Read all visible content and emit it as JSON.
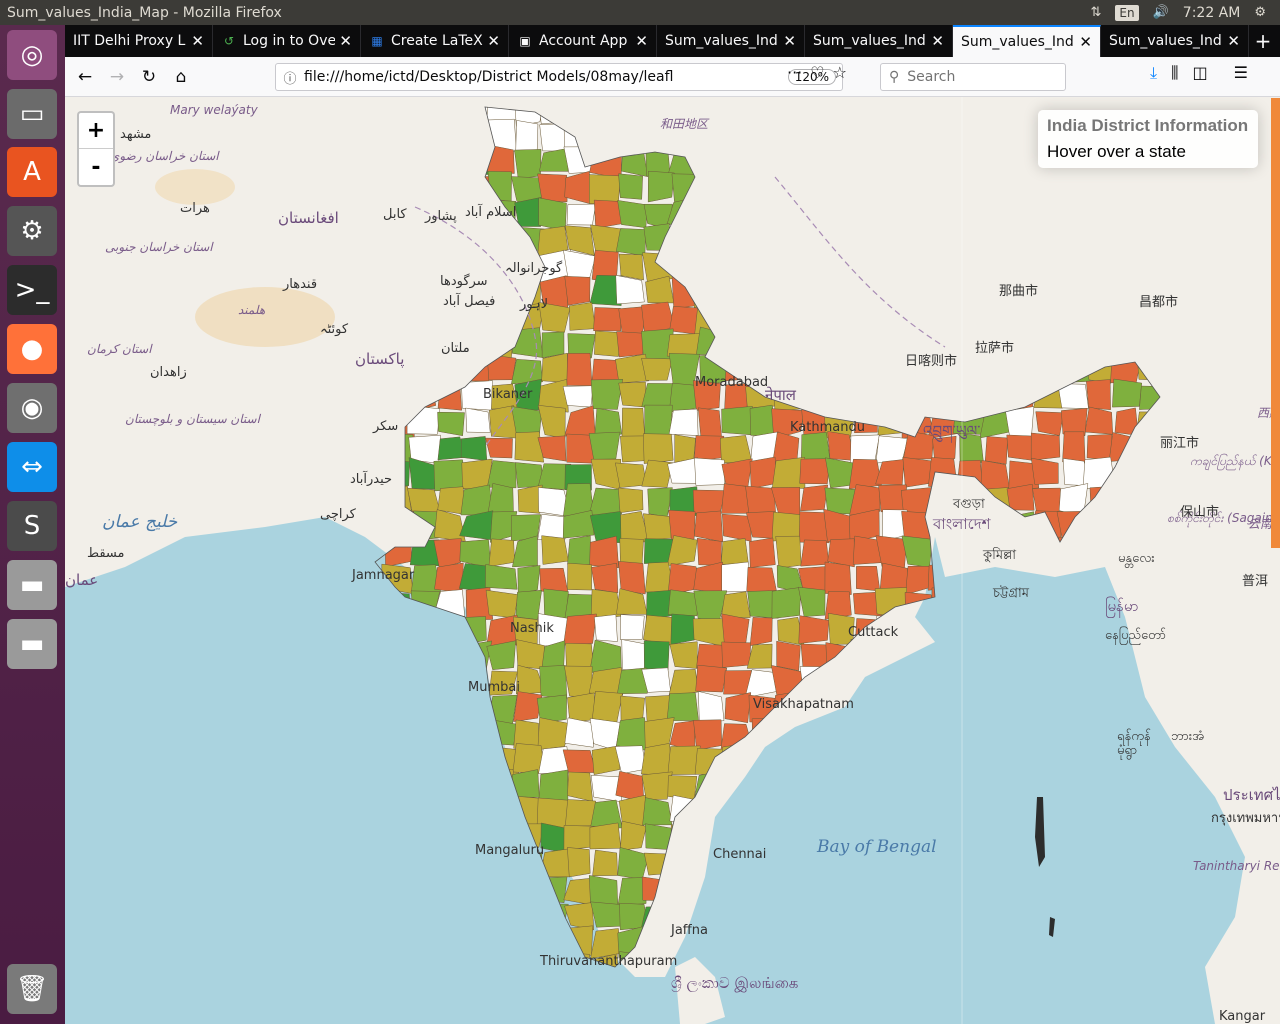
{
  "window": {
    "title": "Sum_values_India_Map - Mozilla Firefox",
    "time": "7:22 AM",
    "keyboard_layout": "En"
  },
  "launcher": [
    {
      "name": "ubuntu-dash-icon",
      "glyph": "◎",
      "bg": "#8f4d7e"
    },
    {
      "name": "files-icon",
      "glyph": "▭",
      "bg": "#6b6b6b"
    },
    {
      "name": "software-center-icon",
      "glyph": "A",
      "bg": "#e95420"
    },
    {
      "name": "system-settings-icon",
      "glyph": "⚙",
      "bg": "#555555"
    },
    {
      "name": "terminal-icon",
      "glyph": ">_",
      "bg": "#2c2c2c"
    },
    {
      "name": "firefox-icon",
      "glyph": "●",
      "bg": "#ff7139"
    },
    {
      "name": "chrome-icon",
      "glyph": "◉",
      "bg": "#6f6f6f"
    },
    {
      "name": "teamviewer-icon",
      "glyph": "⇔",
      "bg": "#0e8ee9"
    },
    {
      "name": "sublime-text-icon",
      "glyph": "S",
      "bg": "#4b4b4b"
    },
    {
      "name": "drive-icon-1",
      "glyph": "▬",
      "bg": "#9a9a9a"
    },
    {
      "name": "drive-icon-2",
      "glyph": "▬",
      "bg": "#9a9a9a"
    },
    {
      "name": "trash-icon",
      "glyph": "🗑",
      "bg": "#7a7a7a"
    }
  ],
  "tabs": [
    {
      "label": "IIT Delhi Proxy L",
      "icon": "",
      "active": false
    },
    {
      "label": "Log in to Ove",
      "icon": "↺",
      "active": false
    },
    {
      "label": "Create LaTeX",
      "icon": "▦",
      "active": false
    },
    {
      "label": "Account App",
      "icon": "▣",
      "active": false
    },
    {
      "label": "Sum_values_Ind",
      "icon": "",
      "active": false
    },
    {
      "label": "Sum_values_Ind",
      "icon": "",
      "active": false
    },
    {
      "label": "Sum_values_Ind",
      "icon": "",
      "active": true
    },
    {
      "label": "Sum_values_Ind",
      "icon": "",
      "active": false
    }
  ],
  "navbar": {
    "url": "file:///home/ictd/Desktop/District Models/08may/leafl",
    "zoom": "120%",
    "search_placeholder": "Search"
  },
  "map": {
    "zoom_in": "+",
    "zoom_out": "-",
    "info_title": "India District Information",
    "info_subtitle": "Hover over a state",
    "colors": {
      "orange": "#e0683a",
      "olive": "#c2ac36",
      "green": "#7fb03e",
      "dark_green": "#3f9a3a",
      "white": "#ffffff",
      "water": "#aad3df",
      "land": "#f2efe9"
    },
    "labels": [
      {
        "text": "Mary welaýaty",
        "kind": "region"
      },
      {
        "text": "مشهد",
        "kind": "city"
      },
      {
        "text": "استان خراسان رضوی",
        "kind": "region"
      },
      {
        "text": "هرات",
        "kind": "city"
      },
      {
        "text": "افغانستان",
        "kind": "country"
      },
      {
        "text": "کابل",
        "kind": "city"
      },
      {
        "text": "پشاور",
        "kind": "city"
      },
      {
        "text": "اسلام آباد",
        "kind": "city"
      },
      {
        "text": "استان خراسان جنوبی",
        "kind": "region"
      },
      {
        "text": "قندهار",
        "kind": "city"
      },
      {
        "text": "سرگودھا",
        "kind": "city"
      },
      {
        "text": "گوجرانوالہ",
        "kind": "city"
      },
      {
        "text": "فیصل آباد",
        "kind": "city"
      },
      {
        "text": "لاہور",
        "kind": "city"
      },
      {
        "text": "هلمند",
        "kind": "region"
      },
      {
        "text": "کوئٹہ",
        "kind": "city"
      },
      {
        "text": "ملتان",
        "kind": "city"
      },
      {
        "text": "استان کرمان",
        "kind": "region"
      },
      {
        "text": "زاهدان",
        "kind": "city"
      },
      {
        "text": "پاکستان",
        "kind": "country"
      },
      {
        "text": "سکر",
        "kind": "city"
      },
      {
        "text": "استان سیستان و بلوچستان",
        "kind": "region"
      },
      {
        "text": "حیدرآباد",
        "kind": "city"
      },
      {
        "text": "کراچی",
        "kind": "city"
      },
      {
        "text": "خليج عمان",
        "kind": "sea"
      },
      {
        "text": "مسقط",
        "kind": "city"
      },
      {
        "text": "عمان",
        "kind": "country"
      },
      {
        "text": "Jamnagar",
        "kind": "city"
      },
      {
        "text": "Mumbai",
        "kind": "city"
      },
      {
        "text": "Nashik",
        "kind": "city"
      },
      {
        "text": "Mangaluru",
        "kind": "city"
      },
      {
        "text": "Thiruvananthapuram",
        "kind": "city"
      },
      {
        "text": "Jaffna",
        "kind": "city"
      },
      {
        "text": "Chennai",
        "kind": "city"
      },
      {
        "text": "Visakhapatnam",
        "kind": "city"
      },
      {
        "text": "Cuttack",
        "kind": "city"
      },
      {
        "text": "Kathmandu",
        "kind": "city"
      },
      {
        "text": "नेपाल",
        "kind": "country"
      },
      {
        "text": "Moradabad",
        "kind": "city"
      },
      {
        "text": "Bikaner",
        "kind": "city"
      },
      {
        "text": "和田地区",
        "kind": "region"
      },
      {
        "text": "那曲市",
        "kind": "city"
      },
      {
        "text": "昌都市",
        "kind": "city"
      },
      {
        "text": "日喀则市",
        "kind": "city"
      },
      {
        "text": "拉萨市",
        "kind": "city"
      },
      {
        "text": "འབྲུག་ཡུལ་",
        "kind": "country"
      },
      {
        "text": "বগুড়া",
        "kind": "city"
      },
      {
        "text": "বাংলাদেশ",
        "kind": "country"
      },
      {
        "text": "কুমিল্লা",
        "kind": "city"
      },
      {
        "text": "চট্টগ্রাম",
        "kind": "city"
      },
      {
        "text": "ကချင်ပြည်နယ် (Kachin)",
        "kind": "region"
      },
      {
        "text": "စစ်ကိုင်းတိုင်း (Sagaing)",
        "kind": "region"
      },
      {
        "text": "မန္တလေး",
        "kind": "city"
      },
      {
        "text": "မြန်မာ",
        "kind": "country"
      },
      {
        "text": "နေပြည်တော်",
        "kind": "city"
      },
      {
        "text": "ရန်ကုန်",
        "kind": "city"
      },
      {
        "text": "မုံရွာ",
        "kind": "city"
      },
      {
        "text": "ဘားအံ",
        "kind": "city"
      },
      {
        "text": "丽江市",
        "kind": "city"
      },
      {
        "text": "保山市",
        "kind": "city"
      },
      {
        "text": "云南",
        "kind": "region"
      },
      {
        "text": "普洱",
        "kind": "city"
      },
      {
        "text": "西藏",
        "kind": "region"
      },
      {
        "text": "ประเทศไทย",
        "kind": "country"
      },
      {
        "text": "กรุงเทพมหานคร",
        "kind": "city"
      },
      {
        "text": "Tanintharyi Region",
        "kind": "region"
      },
      {
        "text": "Bay of Bengal",
        "kind": "sea"
      },
      {
        "text": "ශ්‍රී ලංකාව இலங்கை",
        "kind": "country"
      },
      {
        "text": "Kangar",
        "kind": "city"
      }
    ]
  }
}
